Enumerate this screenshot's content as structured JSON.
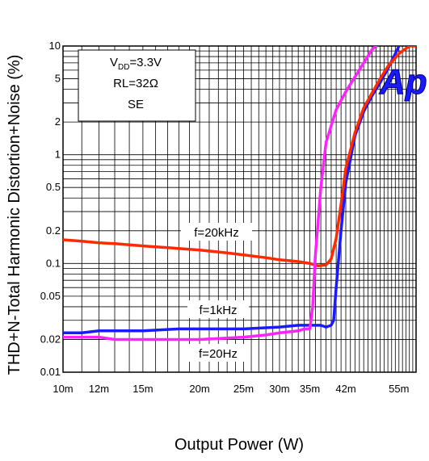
{
  "chart_data": {
    "type": "line",
    "title": "",
    "xlabel": "Output Power (W)",
    "ylabel": "THD+N-Total Harmonic Distortion+Noise (%)",
    "x_scale": "log",
    "y_scale": "log",
    "xlim": [
      0.01,
      0.06
    ],
    "ylim": [
      0.01,
      10
    ],
    "grid": true,
    "x_tick_labels": [
      "10m",
      "12m",
      "15m",
      "20m",
      "25m",
      "30m",
      "35m",
      "42m",
      "55m"
    ],
    "x_tick_values": [
      0.01,
      0.012,
      0.015,
      0.02,
      0.025,
      0.03,
      0.035,
      0.042,
      0.055
    ],
    "y_tick_labels": [
      "10",
      "5",
      "2",
      "1",
      "0.5",
      "0.2",
      "0.1",
      "0.05",
      "0.02",
      "0.01"
    ],
    "y_tick_values": [
      10,
      5,
      2,
      1,
      0.5,
      0.2,
      0.1,
      0.05,
      0.02,
      0.01
    ],
    "conditions": {
      "vdd_prefix": "V",
      "vdd_sub": "DD",
      "vdd_value": "=3.3V",
      "rl": "RL=32Ω",
      "mode": "SE"
    },
    "logo_text": "Ap",
    "series": [
      {
        "name": "f=20kHz",
        "color": "#ff2a00",
        "x": [
          0.01,
          0.011,
          0.012,
          0.013,
          0.015,
          0.017,
          0.02,
          0.023,
          0.025,
          0.028,
          0.03,
          0.033,
          0.035,
          0.0365,
          0.038,
          0.039,
          0.04,
          0.041,
          0.042,
          0.044,
          0.046,
          0.048,
          0.05,
          0.052,
          0.055,
          0.058,
          0.06
        ],
        "y": [
          0.165,
          0.16,
          0.155,
          0.152,
          0.145,
          0.14,
          0.133,
          0.125,
          0.12,
          0.113,
          0.108,
          0.104,
          0.1,
          0.095,
          0.097,
          0.11,
          0.17,
          0.35,
          0.75,
          1.6,
          2.7,
          3.7,
          5,
          6.5,
          8.5,
          10,
          10
        ]
      },
      {
        "name": "f=1kHz",
        "color": "#1a1aff",
        "x": [
          0.01,
          0.011,
          0.012,
          0.015,
          0.018,
          0.02,
          0.025,
          0.03,
          0.033,
          0.035,
          0.037,
          0.038,
          0.039,
          0.0395,
          0.04,
          0.041,
          0.042,
          0.044,
          0.046,
          0.048,
          0.05,
          0.052,
          0.054,
          0.055
        ],
        "y": [
          0.023,
          0.023,
          0.024,
          0.024,
          0.025,
          0.025,
          0.025,
          0.026,
          0.027,
          0.027,
          0.027,
          0.026,
          0.027,
          0.03,
          0.06,
          0.2,
          0.55,
          1.5,
          2.5,
          3.5,
          4.6,
          6.2,
          8.5,
          10
        ]
      },
      {
        "name": "f=20Hz",
        "color": "#ff22ff",
        "x": [
          0.01,
          0.011,
          0.012,
          0.013,
          0.015,
          0.02,
          0.025,
          0.028,
          0.03,
          0.033,
          0.034,
          0.0345,
          0.035,
          0.0355,
          0.036,
          0.037,
          0.038,
          0.04,
          0.042,
          0.044,
          0.046,
          0.048,
          0.049
        ],
        "y": [
          0.021,
          0.021,
          0.021,
          0.02,
          0.02,
          0.02,
          0.021,
          0.022,
          0.023,
          0.024,
          0.025,
          0.025,
          0.025,
          0.04,
          0.12,
          0.5,
          1.3,
          2.6,
          3.8,
          5.2,
          7,
          9.3,
          10
        ]
      }
    ],
    "series_labels": [
      "f=20kHz",
      "f=1kHz",
      "f=20Hz"
    ]
  }
}
